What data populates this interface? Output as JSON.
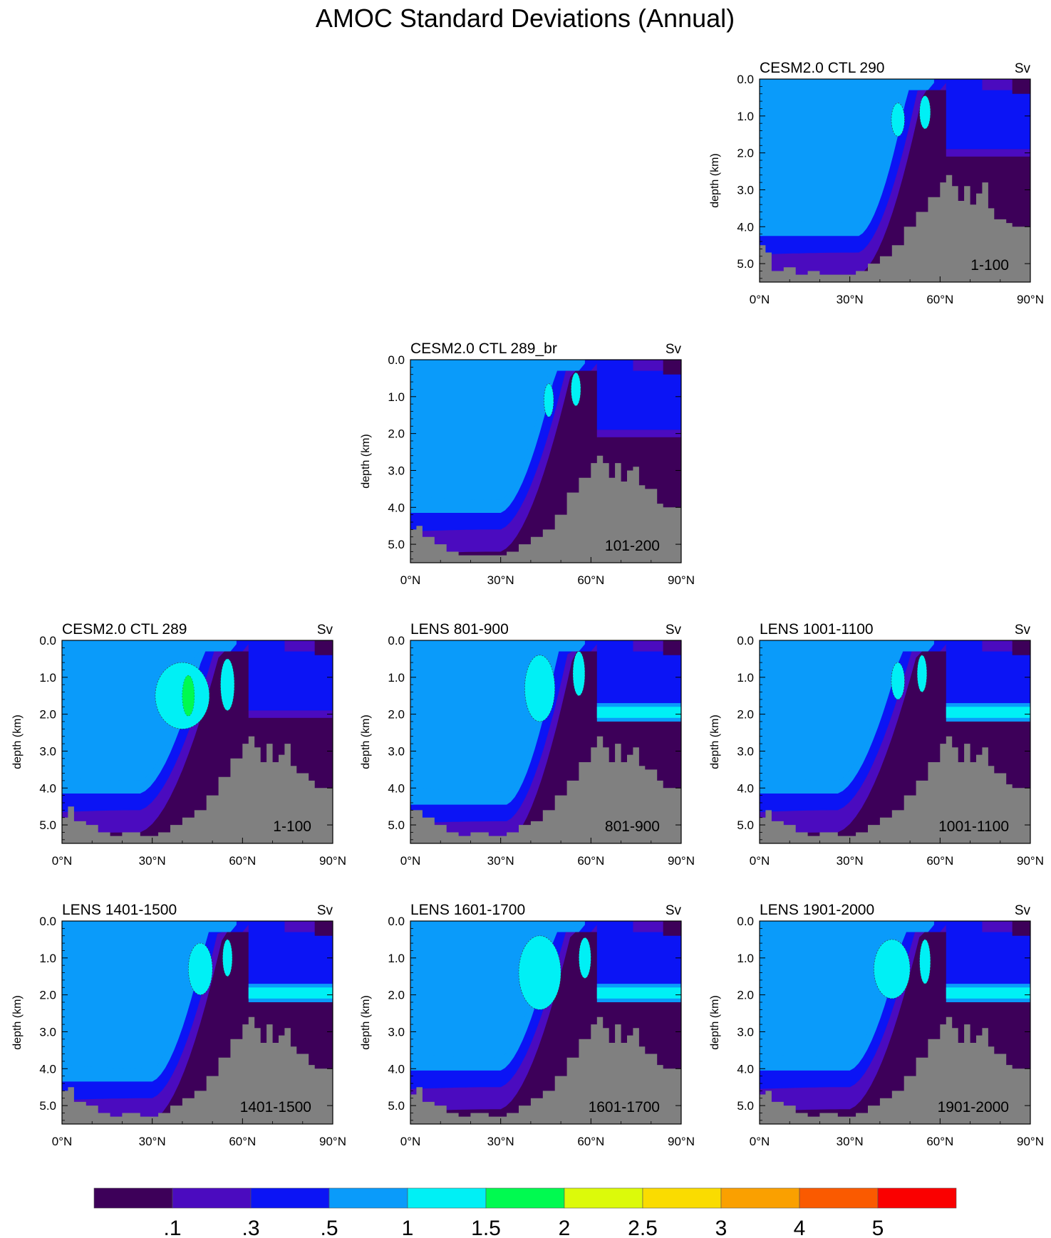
{
  "title": "AMOC Standard Deviations (Annual)",
  "units": "Sv",
  "ylabel": "depth (km)",
  "y_ticks": [
    "0.0",
    "1.0",
    "2.0",
    "3.0",
    "4.0",
    "5.0"
  ],
  "x_ticks": [
    "0°N",
    "30°N",
    "60°N",
    "90°N"
  ],
  "colors": {
    "land": "#808080",
    "levels": [
      "#3d0059",
      "#4b0bbf",
      "#0b14f5",
      "#0a9bfa",
      "#00f0f5",
      "#00fa50",
      "#dcfa0a",
      "#fadc00",
      "#faa000",
      "#fa5a00",
      "#fa0000"
    ]
  },
  "colorbar_labels": [
    ".1",
    ".3",
    ".5",
    "1",
    "1.5",
    "2",
    "2.5",
    "3",
    "4",
    "5"
  ],
  "chart_data": [
    {
      "type": "heatmap",
      "title": "CESM2.0 CTL 290",
      "period": "1-100",
      "xlim": [
        0,
        90
      ],
      "ylim": [
        0,
        5.5
      ],
      "core_depth": 3.9,
      "core_center": 33,
      "peak_level": 4,
      "blobs": [
        {
          "x": 46,
          "y": 1.1,
          "rx": 2.2,
          "ry": 0.45
        },
        {
          "x": 55,
          "y": 0.9,
          "rx": 1.8,
          "ry": 0.45
        }
      ],
      "land": [
        [
          0,
          4.5
        ],
        [
          2,
          4.7
        ],
        [
          4,
          5.2
        ],
        [
          8,
          5.1
        ],
        [
          12,
          5.3
        ],
        [
          16,
          5.2
        ],
        [
          20,
          5.3
        ],
        [
          26,
          5.3
        ],
        [
          32,
          5.2
        ],
        [
          36,
          5.0
        ],
        [
          40,
          4.8
        ],
        [
          44,
          4.5
        ],
        [
          48,
          4.0
        ],
        [
          52,
          3.6
        ],
        [
          56,
          3.2
        ],
        [
          60,
          2.8
        ],
        [
          62,
          2.6
        ],
        [
          64,
          2.9
        ],
        [
          66,
          3.3
        ],
        [
          68,
          2.9
        ],
        [
          70,
          3.4
        ],
        [
          72,
          3.1
        ],
        [
          74,
          2.8
        ],
        [
          76,
          3.5
        ],
        [
          78,
          3.8
        ],
        [
          82,
          3.9
        ],
        [
          84,
          4.0
        ],
        [
          90,
          4.0
        ]
      ],
      "shelf": false
    },
    {
      "type": "heatmap",
      "title": "CESM2.0 CTL 289_br",
      "period": "101-200",
      "xlim": [
        0,
        90
      ],
      "ylim": [
        0,
        5.5
      ],
      "core_depth": 3.8,
      "core_center": 30,
      "peak_level": 4,
      "blobs": [
        {
          "x": 46,
          "y": 1.1,
          "rx": 1.6,
          "ry": 0.45
        },
        {
          "x": 55,
          "y": 0.8,
          "rx": 1.6,
          "ry": 0.45
        }
      ],
      "land": [
        [
          0,
          4.6
        ],
        [
          2,
          4.5
        ],
        [
          4,
          4.8
        ],
        [
          8,
          5.0
        ],
        [
          12,
          5.2
        ],
        [
          16,
          5.3
        ],
        [
          20,
          5.3
        ],
        [
          26,
          5.3
        ],
        [
          32,
          5.2
        ],
        [
          36,
          5.0
        ],
        [
          40,
          4.8
        ],
        [
          44,
          4.6
        ],
        [
          48,
          4.2
        ],
        [
          52,
          3.6
        ],
        [
          56,
          3.2
        ],
        [
          60,
          2.8
        ],
        [
          62,
          2.6
        ],
        [
          64,
          2.8
        ],
        [
          66,
          3.2
        ],
        [
          68,
          2.8
        ],
        [
          70,
          3.3
        ],
        [
          72,
          3.0
        ],
        [
          74,
          2.9
        ],
        [
          76,
          3.4
        ],
        [
          78,
          3.5
        ],
        [
          82,
          3.9
        ],
        [
          84,
          4.0
        ],
        [
          90,
          4.0
        ]
      ],
      "shelf": false
    },
    {
      "type": "heatmap",
      "title": "CESM2.0 CTL 289",
      "period": "1-100",
      "xlim": [
        0,
        90
      ],
      "ylim": [
        0,
        5.5
      ],
      "core_depth": 3.8,
      "core_center": 26,
      "peak_level": 5,
      "blobs": [
        {
          "x": 40,
          "y": 1.5,
          "rx": 9,
          "ry": 0.9
        },
        {
          "x": 42,
          "y": 1.5,
          "rx": 2,
          "ry": 0.55
        },
        {
          "x": 55,
          "y": 1.2,
          "rx": 2.3,
          "ry": 0.7
        }
      ],
      "land": [
        [
          0,
          4.8
        ],
        [
          2,
          4.5
        ],
        [
          4,
          4.9
        ],
        [
          8,
          5.0
        ],
        [
          12,
          5.2
        ],
        [
          16,
          5.3
        ],
        [
          20,
          5.2
        ],
        [
          26,
          5.3
        ],
        [
          32,
          5.2
        ],
        [
          36,
          5.0
        ],
        [
          40,
          4.8
        ],
        [
          44,
          4.6
        ],
        [
          48,
          4.2
        ],
        [
          52,
          3.7
        ],
        [
          56,
          3.2
        ],
        [
          60,
          2.8
        ],
        [
          62,
          2.6
        ],
        [
          64,
          2.9
        ],
        [
          66,
          3.3
        ],
        [
          68,
          2.8
        ],
        [
          70,
          3.3
        ],
        [
          72,
          3.1
        ],
        [
          74,
          2.8
        ],
        [
          76,
          3.4
        ],
        [
          78,
          3.6
        ],
        [
          82,
          3.8
        ],
        [
          84,
          4.0
        ],
        [
          90,
          4.0
        ]
      ],
      "shelf": false
    },
    {
      "type": "heatmap",
      "title": "LENS 801-900",
      "period": "801-900",
      "xlim": [
        0,
        90
      ],
      "ylim": [
        0,
        5.5
      ],
      "core_depth": 4.1,
      "core_center": 32,
      "peak_level": 4,
      "blobs": [
        {
          "x": 43,
          "y": 1.3,
          "rx": 5,
          "ry": 0.9
        },
        {
          "x": 56,
          "y": 0.9,
          "rx": 2,
          "ry": 0.6
        }
      ],
      "land": [
        [
          0,
          4.6
        ],
        [
          2,
          4.6
        ],
        [
          4,
          4.8
        ],
        [
          8,
          5.0
        ],
        [
          12,
          5.2
        ],
        [
          16,
          5.3
        ],
        [
          20,
          5.2
        ],
        [
          26,
          5.3
        ],
        [
          32,
          5.2
        ],
        [
          36,
          5.0
        ],
        [
          40,
          4.9
        ],
        [
          44,
          4.6
        ],
        [
          48,
          4.2
        ],
        [
          52,
          3.8
        ],
        [
          56,
          3.3
        ],
        [
          60,
          2.9
        ],
        [
          62,
          2.6
        ],
        [
          64,
          2.9
        ],
        [
          66,
          3.3
        ],
        [
          68,
          2.8
        ],
        [
          70,
          3.3
        ],
        [
          72,
          3.1
        ],
        [
          74,
          2.9
        ],
        [
          76,
          3.4
        ],
        [
          78,
          3.5
        ],
        [
          82,
          3.8
        ],
        [
          84,
          4.0
        ],
        [
          90,
          4.0
        ]
      ],
      "shelf": true
    },
    {
      "type": "heatmap",
      "title": "LENS 1001-1100",
      "period": "1001-1100",
      "xlim": [
        0,
        90
      ],
      "ylim": [
        0,
        5.5
      ],
      "core_depth": 3.8,
      "core_center": 26,
      "peak_level": 4,
      "blobs": [
        {
          "x": 46,
          "y": 1.1,
          "rx": 2.2,
          "ry": 0.5
        },
        {
          "x": 54,
          "y": 0.9,
          "rx": 1.6,
          "ry": 0.5
        }
      ],
      "land": [
        [
          0,
          4.8
        ],
        [
          2,
          4.6
        ],
        [
          4,
          4.9
        ],
        [
          8,
          5.0
        ],
        [
          12,
          5.2
        ],
        [
          16,
          5.3
        ],
        [
          20,
          5.2
        ],
        [
          26,
          5.3
        ],
        [
          32,
          5.2
        ],
        [
          36,
          5.0
        ],
        [
          40,
          4.8
        ],
        [
          44,
          4.6
        ],
        [
          48,
          4.2
        ],
        [
          52,
          3.8
        ],
        [
          56,
          3.3
        ],
        [
          60,
          2.8
        ],
        [
          62,
          2.6
        ],
        [
          64,
          2.9
        ],
        [
          66,
          3.3
        ],
        [
          68,
          2.8
        ],
        [
          70,
          3.3
        ],
        [
          72,
          3.1
        ],
        [
          74,
          2.9
        ],
        [
          76,
          3.4
        ],
        [
          78,
          3.6
        ],
        [
          82,
          3.9
        ],
        [
          84,
          4.0
        ],
        [
          90,
          4.0
        ]
      ],
      "shelf": true
    },
    {
      "type": "heatmap",
      "title": "LENS 1401-1500",
      "period": "1401-1500",
      "xlim": [
        0,
        90
      ],
      "ylim": [
        0,
        5.5
      ],
      "core_depth": 4.0,
      "core_center": 30,
      "peak_level": 4,
      "blobs": [
        {
          "x": 46,
          "y": 1.3,
          "rx": 4,
          "ry": 0.7
        },
        {
          "x": 55,
          "y": 1.0,
          "rx": 1.6,
          "ry": 0.5
        }
      ],
      "land": [
        [
          0,
          4.6
        ],
        [
          2,
          4.5
        ],
        [
          4,
          4.9
        ],
        [
          8,
          5.0
        ],
        [
          12,
          5.2
        ],
        [
          16,
          5.3
        ],
        [
          20,
          5.2
        ],
        [
          26,
          5.3
        ],
        [
          32,
          5.2
        ],
        [
          36,
          5.0
        ],
        [
          40,
          4.8
        ],
        [
          44,
          4.6
        ],
        [
          48,
          4.2
        ],
        [
          52,
          3.7
        ],
        [
          56,
          3.2
        ],
        [
          60,
          2.8
        ],
        [
          62,
          2.6
        ],
        [
          64,
          2.9
        ],
        [
          66,
          3.3
        ],
        [
          68,
          2.8
        ],
        [
          70,
          3.3
        ],
        [
          72,
          3.1
        ],
        [
          74,
          2.9
        ],
        [
          76,
          3.4
        ],
        [
          78,
          3.6
        ],
        [
          82,
          3.9
        ],
        [
          84,
          4.0
        ],
        [
          90,
          4.0
        ]
      ],
      "shelf": true
    },
    {
      "type": "heatmap",
      "title": "LENS 1601-1700",
      "period": "1601-1700",
      "xlim": [
        0,
        90
      ],
      "ylim": [
        0,
        5.5
      ],
      "core_depth": 3.7,
      "core_center": 30,
      "peak_level": 4,
      "blobs": [
        {
          "x": 43,
          "y": 1.4,
          "rx": 7,
          "ry": 1.0
        },
        {
          "x": 58,
          "y": 1.0,
          "rx": 2,
          "ry": 0.55
        }
      ],
      "land": [
        [
          0,
          4.7
        ],
        [
          2,
          4.5
        ],
        [
          4,
          4.9
        ],
        [
          8,
          5.0
        ],
        [
          12,
          5.2
        ],
        [
          16,
          5.3
        ],
        [
          20,
          5.2
        ],
        [
          26,
          5.3
        ],
        [
          32,
          5.2
        ],
        [
          36,
          5.0
        ],
        [
          40,
          4.8
        ],
        [
          44,
          4.6
        ],
        [
          48,
          4.2
        ],
        [
          52,
          3.7
        ],
        [
          56,
          3.2
        ],
        [
          60,
          2.8
        ],
        [
          62,
          2.6
        ],
        [
          64,
          2.9
        ],
        [
          66,
          3.3
        ],
        [
          68,
          2.8
        ],
        [
          70,
          3.3
        ],
        [
          72,
          3.1
        ],
        [
          74,
          2.9
        ],
        [
          76,
          3.4
        ],
        [
          78,
          3.6
        ],
        [
          82,
          3.9
        ],
        [
          84,
          4.0
        ],
        [
          90,
          4.0
        ]
      ],
      "shelf": true
    },
    {
      "type": "heatmap",
      "title": "LENS 1901-2000",
      "period": "1901-2000",
      "xlim": [
        0,
        90
      ],
      "ylim": [
        0,
        5.5
      ],
      "core_depth": 3.7,
      "core_center": 30,
      "peak_level": 4,
      "blobs": [
        {
          "x": 44,
          "y": 1.3,
          "rx": 6,
          "ry": 0.8
        },
        {
          "x": 55,
          "y": 1.1,
          "rx": 1.8,
          "ry": 0.6
        }
      ],
      "land": [
        [
          0,
          4.7
        ],
        [
          2,
          4.6
        ],
        [
          4,
          4.9
        ],
        [
          8,
          5.0
        ],
        [
          12,
          5.2
        ],
        [
          16,
          5.3
        ],
        [
          20,
          5.2
        ],
        [
          26,
          5.3
        ],
        [
          32,
          5.2
        ],
        [
          36,
          5.0
        ],
        [
          40,
          4.8
        ],
        [
          44,
          4.6
        ],
        [
          48,
          4.2
        ],
        [
          52,
          3.7
        ],
        [
          56,
          3.2
        ],
        [
          60,
          2.8
        ],
        [
          62,
          2.6
        ],
        [
          64,
          2.9
        ],
        [
          66,
          3.3
        ],
        [
          68,
          2.8
        ],
        [
          70,
          3.3
        ],
        [
          72,
          3.1
        ],
        [
          74,
          2.9
        ],
        [
          76,
          3.4
        ],
        [
          78,
          3.6
        ],
        [
          82,
          3.9
        ],
        [
          84,
          4.0
        ],
        [
          90,
          4.0
        ]
      ],
      "shelf": true
    }
  ]
}
